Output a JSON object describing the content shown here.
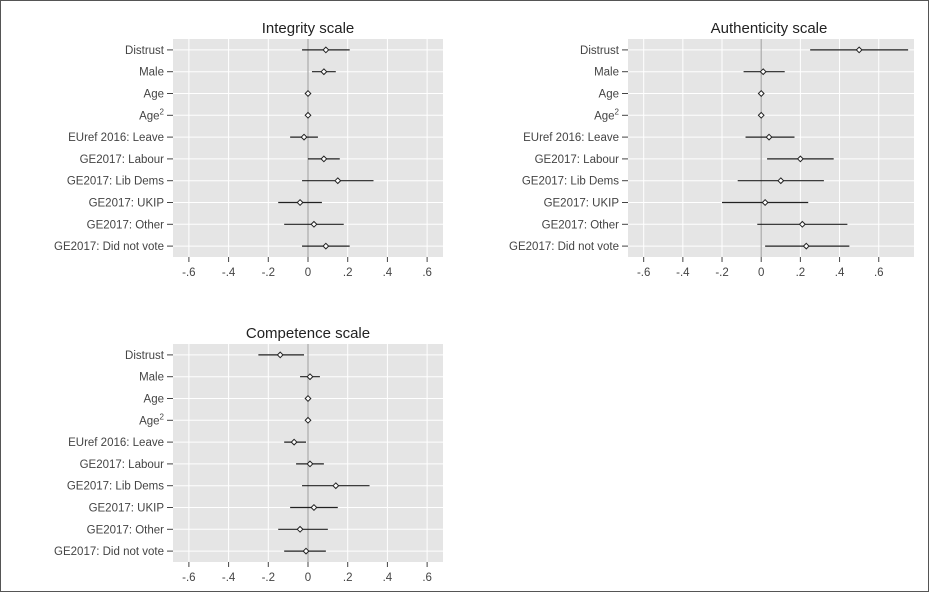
{
  "chart_data": [
    {
      "type": "coefficient-plot",
      "title": "Integrity scale",
      "categories": [
        "Distrust",
        "Male",
        "Age",
        "Age²",
        "EUref 2016: Leave",
        "GE2017: Labour",
        "GE2017: Lib Dems",
        "GE2017: UKIP",
        "GE2017: Other",
        "GE2017: Did not vote"
      ],
      "estimates": [
        0.09,
        0.08,
        0.0,
        0.0,
        -0.02,
        0.08,
        0.15,
        -0.04,
        0.03,
        0.09
      ],
      "ci_low": [
        -0.03,
        0.02,
        0.0,
        0.0,
        -0.09,
        0.0,
        -0.03,
        -0.15,
        -0.12,
        -0.03
      ],
      "ci_high": [
        0.21,
        0.14,
        0.0,
        0.0,
        0.05,
        0.16,
        0.33,
        0.07,
        0.18,
        0.21
      ],
      "xticks": [
        -0.6,
        -0.4,
        -0.2,
        0,
        0.2,
        0.4,
        0.6
      ],
      "xtick_labels": [
        "-.6",
        "-.4",
        "-.2",
        "0",
        ".2",
        ".4",
        ".6"
      ],
      "xlim": [
        -0.68,
        0.68
      ],
      "grid": true
    },
    {
      "type": "coefficient-plot",
      "title": "Authenticity scale",
      "categories": [
        "Distrust",
        "Male",
        "Age",
        "Age²",
        "EUref 2016: Leave",
        "GE2017: Labour",
        "GE2017: Lib Dems",
        "GE2017: UKIP",
        "GE2017: Other",
        "GE2017: Did not vote"
      ],
      "estimates": [
        0.5,
        0.01,
        0.0,
        0.0,
        0.04,
        0.2,
        0.1,
        0.02,
        0.21,
        0.23
      ],
      "ci_low": [
        0.25,
        -0.09,
        0.0,
        0.0,
        -0.08,
        0.03,
        -0.12,
        -0.2,
        -0.02,
        0.02
      ],
      "ci_high": [
        0.75,
        0.12,
        0.0,
        0.0,
        0.17,
        0.37,
        0.32,
        0.24,
        0.44,
        0.45
      ],
      "xticks": [
        -0.6,
        -0.4,
        -0.2,
        0,
        0.2,
        0.4,
        0.6
      ],
      "xtick_labels": [
        "-.6",
        "-.4",
        "-.2",
        "0",
        ".2",
        ".4",
        ".6"
      ],
      "xlim": [
        -0.68,
        0.78
      ],
      "grid": true
    },
    {
      "type": "coefficient-plot",
      "title": "Competence scale",
      "categories": [
        "Distrust",
        "Male",
        "Age",
        "Age²",
        "EUref 2016: Leave",
        "GE2017: Labour",
        "GE2017: Lib Dems",
        "GE2017: UKIP",
        "GE2017: Other",
        "GE2017: Did not vote"
      ],
      "estimates": [
        -0.14,
        0.01,
        0.0,
        0.0,
        -0.07,
        0.01,
        0.14,
        0.03,
        -0.04,
        -0.01
      ],
      "ci_low": [
        -0.25,
        -0.04,
        0.0,
        0.0,
        -0.12,
        -0.06,
        -0.03,
        -0.09,
        -0.15,
        -0.12
      ],
      "ci_high": [
        -0.02,
        0.06,
        0.0,
        0.0,
        -0.01,
        0.08,
        0.31,
        0.15,
        0.1,
        0.09
      ],
      "xticks": [
        -0.6,
        -0.4,
        -0.2,
        0,
        0.2,
        0.4,
        0.6
      ],
      "xtick_labels": [
        "-.6",
        "-.4",
        "-.2",
        "0",
        ".2",
        ".4",
        ".6"
      ],
      "xlim": [
        -0.68,
        0.68
      ],
      "grid": true
    }
  ],
  "colors": {
    "panel_background": "#e5e5e5",
    "gridline": "#ffffff",
    "zero_line": "#aaaaaa",
    "ci_line": "#222222",
    "marker_fill": "#ffffff",
    "text": "#444444",
    "title": "#222222"
  }
}
